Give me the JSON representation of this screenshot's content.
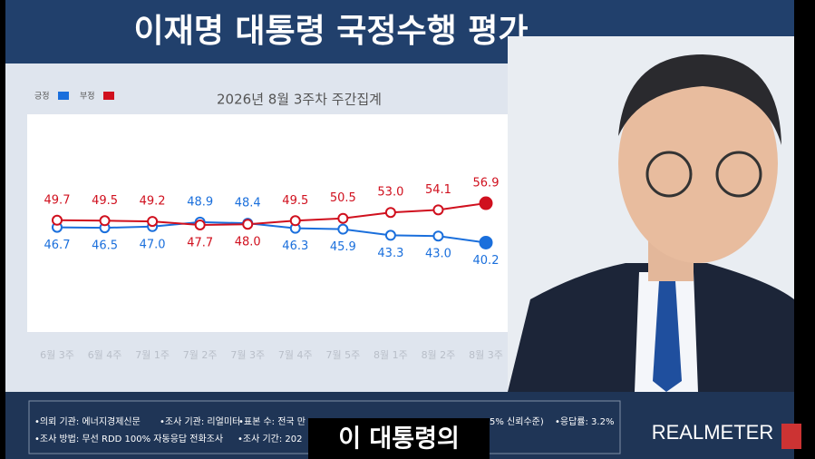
{
  "chart_data": {
    "type": "line",
    "title": "이재명 대통령 국정수행 평가",
    "subtitle": "2026년 8월 3주차 주간집계",
    "categories": [
      "6월 3주",
      "6월 4주",
      "7월 1주",
      "7월 2주",
      "7월 3주",
      "7월 4주",
      "7월 5주",
      "8월 1주",
      "8월 2주",
      "8월 3주"
    ],
    "series": [
      {
        "name": "긍정",
        "color": "#1a6fdc",
        "values": [
          46.7,
          46.5,
          47.0,
          48.9,
          48.4,
          46.3,
          45.9,
          43.3,
          43.0,
          40.2
        ],
        "value_labels": [
          "46.7",
          "46.5",
          "47.0",
          "48.9",
          "48.4",
          "46.3",
          "45.9",
          "43.3",
          "43.0",
          "40.2"
        ]
      },
      {
        "name": "부정",
        "color": "#d0101e",
        "values": [
          49.7,
          49.5,
          49.2,
          47.7,
          48.0,
          49.5,
          50.5,
          53.0,
          54.1,
          56.9
        ],
        "value_labels": [
          "49.7",
          "49.5",
          "49.2",
          "47.7",
          "48.0",
          "49.5",
          "50.5",
          "53.0",
          "54.1",
          "56.9"
        ]
      }
    ],
    "ylim": [
      0,
      100
    ],
    "legend": "top-left"
  },
  "footer": {
    "line1": [
      "•의뢰 기관: 에너지경제신문",
      "•조사 기관: 리얼미터",
      "•표본 수: 전국 만",
      "5% 신뢰수준)",
      "•응답률: 3.2%"
    ],
    "line2": [
      "•조사 방법: 무선 RDD 100% 자동응답 전화조사",
      "•조사 기간: 202"
    ],
    "logo": "REALMETER"
  },
  "caption": "이 대통령의"
}
